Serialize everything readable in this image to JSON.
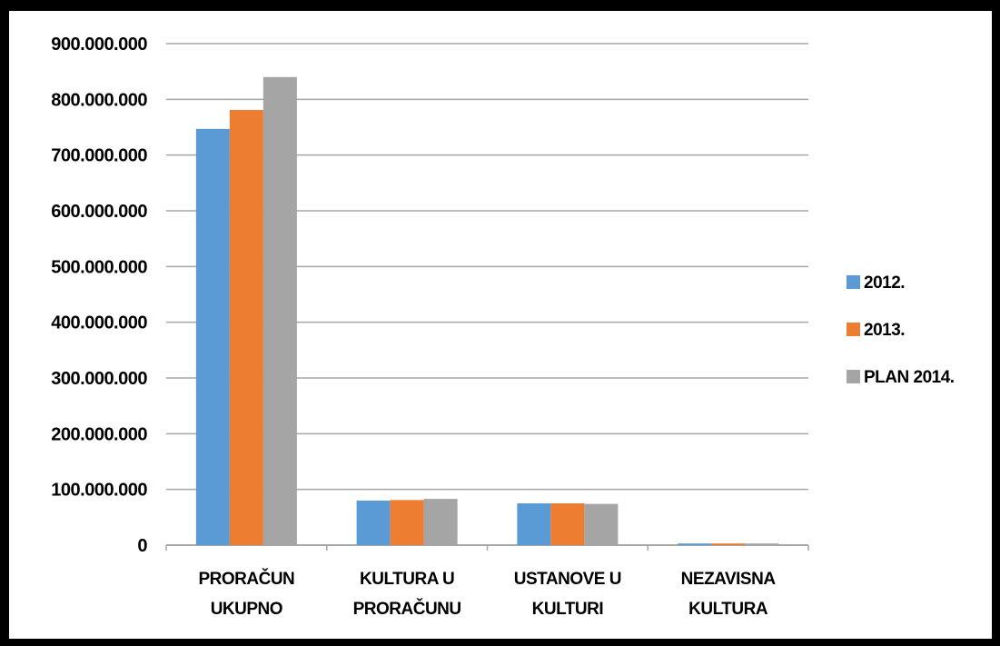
{
  "colors": {
    "series_2012": "#5b9bd5",
    "series_2013": "#ed7d31",
    "series_plan2014": "#a5a5a5",
    "gridline": "#a6a6a6",
    "axis": "#a6a6a6"
  },
  "chart_data": {
    "type": "bar",
    "categories": [
      [
        "PRORAČUN",
        "UKUPNO"
      ],
      [
        "KULTURA U",
        "PRORAČUNU"
      ],
      [
        "USTANOVE U",
        "KULTURI"
      ],
      [
        "NEZAVISNA",
        "KULTURA"
      ]
    ],
    "series": [
      {
        "name": "2012.",
        "values": [
          747000000,
          80000000,
          75000000,
          3000000
        ]
      },
      {
        "name": "2013.",
        "values": [
          781000000,
          81000000,
          75000000,
          3000000
        ]
      },
      {
        "name": "PLAN 2014.",
        "values": [
          840000000,
          83000000,
          74000000,
          3000000
        ]
      }
    ],
    "y_ticks": [
      "0",
      "100.000.000",
      "200.000.000",
      "300.000.000",
      "400.000.000",
      "500.000.000",
      "600.000.000",
      "700.000.000",
      "800.000.000",
      "900.000.000"
    ],
    "ylim": [
      0,
      900000000
    ],
    "grid": true,
    "legend_position": "right"
  }
}
